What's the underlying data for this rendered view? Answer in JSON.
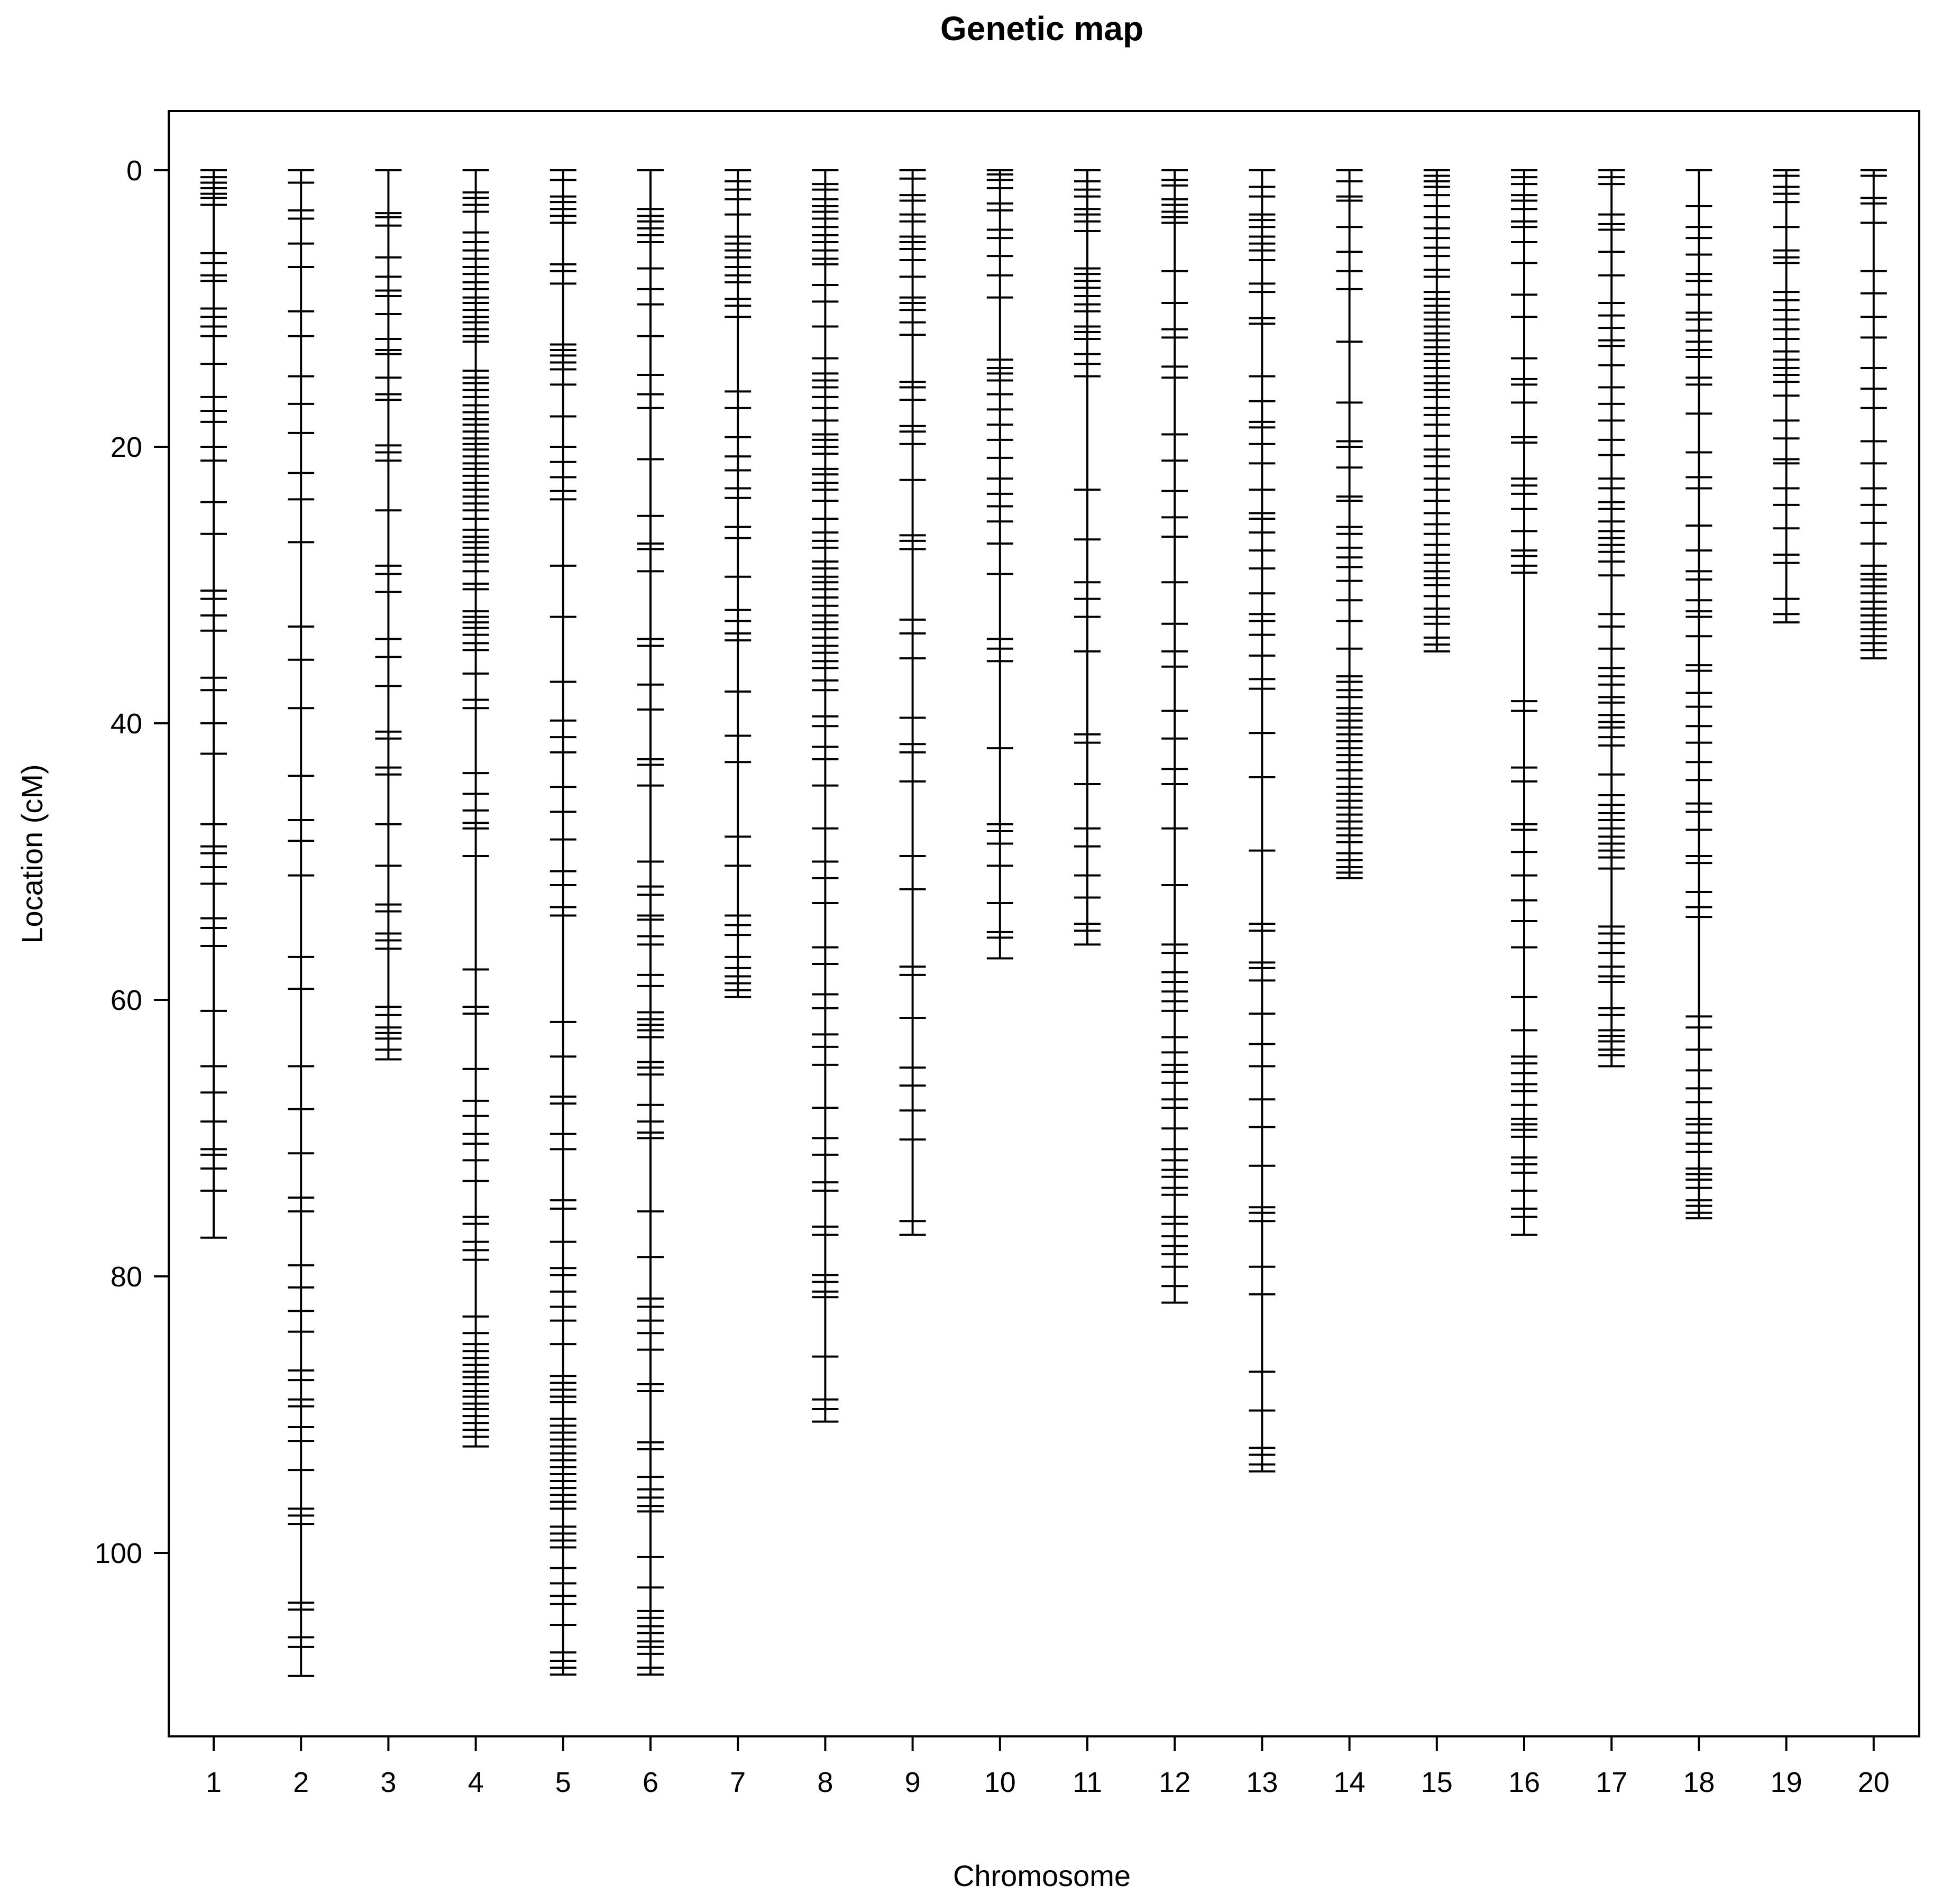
{
  "chart_data": {
    "type": "genetic-map",
    "title": "Genetic map",
    "xlabel": "Chromosome",
    "ylabel": "Location (cM)",
    "ylim": [
      0,
      109
    ],
    "yticks": [
      0,
      20,
      40,
      60,
      80,
      100
    ],
    "ytick_labels": [
      "0",
      "20",
      "40",
      "60",
      "80",
      "100"
    ],
    "chromosomes": [
      {
        "name": "1",
        "length": 77.2,
        "markers": [
          0,
          0.5,
          0.9,
          1.3,
          1.7,
          2.0,
          2.5,
          6.0,
          6.7,
          7.6,
          8.0,
          10.0,
          10.6,
          11.3,
          12.0,
          14.0,
          16.4,
          17.4,
          18.2,
          20.0,
          21.0,
          24.0,
          26.3,
          30.4,
          31.0,
          32.2,
          33.3,
          36.7,
          37.6,
          40.0,
          42.2,
          47.3,
          48.9,
          49.4,
          50.4,
          51.6,
          54.1,
          54.8,
          56.1,
          60.8,
          64.8,
          66.7,
          68.8,
          70.8,
          71.2,
          72.2,
          73.8,
          77.2
        ]
      },
      {
        "name": "2",
        "length": 108.9,
        "markers": [
          0,
          0.9,
          2.9,
          3.5,
          5.3,
          7.0,
          10.2,
          12.0,
          14.9,
          16.9,
          19.0,
          21.9,
          23.8,
          26.9,
          33.0,
          35.4,
          38.9,
          43.8,
          47.0,
          48.5,
          51.0,
          56.9,
          59.2,
          64.8,
          67.9,
          71.1,
          74.3,
          75.3,
          79.2,
          80.8,
          82.5,
          84.0,
          86.8,
          87.5,
          88.9,
          89.4,
          90.9,
          91.9,
          94.0,
          96.8,
          97.3,
          97.9,
          103.6,
          104.1,
          106.1,
          106.8,
          108.9
        ]
      },
      {
        "name": "3",
        "length": 64.3,
        "markers": [
          0,
          3.1,
          3.4,
          4.0,
          6.3,
          7.7,
          8.7,
          9.1,
          10.4,
          12.2,
          13.0,
          13.3,
          15.0,
          16.2,
          16.6,
          19.9,
          20.4,
          21.0,
          24.6,
          28.6,
          29.2,
          30.5,
          33.9,
          35.2,
          37.3,
          40.6,
          41.1,
          43.2,
          43.7,
          47.3,
          50.3,
          53.1,
          53.6,
          55.2,
          55.7,
          56.3,
          60.5,
          61.1,
          62.0,
          62.4,
          62.8,
          63.6,
          64.3
        ]
      },
      {
        "name": "4",
        "length": 92.3,
        "markers": [
          0,
          1.6,
          2.0,
          2.5,
          3.0,
          4.5,
          5.2,
          5.8,
          6.4,
          7.0,
          7.5,
          8.1,
          8.6,
          9.2,
          9.6,
          10.1,
          10.6,
          11.0,
          11.5,
          12.0,
          12.4,
          14.5,
          15.0,
          15.4,
          15.9,
          16.4,
          17.0,
          17.5,
          18.0,
          18.4,
          18.9,
          19.4,
          19.8,
          20.2,
          20.7,
          21.2,
          21.6,
          22.1,
          22.6,
          23.1,
          23.6,
          24.1,
          24.6,
          25.2,
          26.0,
          26.5,
          26.9,
          27.3,
          27.8,
          28.3,
          29.0,
          29.9,
          30.3,
          31.9,
          32.3,
          32.7,
          33.1,
          33.6,
          34.2,
          34.7,
          36.4,
          38.3,
          38.9,
          43.6,
          45.1,
          46.3,
          47.2,
          47.6,
          49.6,
          57.8,
          60.5,
          61.0,
          65.0,
          67.3,
          68.4,
          69.7,
          70.4,
          71.6,
          73.1,
          75.7,
          76.2,
          77.5,
          78.1,
          78.8,
          82.9,
          84.1,
          84.9,
          85.4,
          85.9,
          86.4,
          86.9,
          87.3,
          87.8,
          88.3,
          88.7,
          89.2,
          89.6,
          90.1,
          90.6,
          91.1,
          91.6,
          92.3
        ]
      },
      {
        "name": "5",
        "length": 108.8,
        "markers": [
          0,
          0.7,
          1.9,
          2.3,
          2.8,
          3.3,
          3.8,
          6.8,
          7.3,
          8.2,
          12.6,
          13.0,
          13.4,
          13.9,
          14.4,
          15.5,
          17.8,
          20.0,
          21.1,
          22.2,
          23.2,
          23.8,
          28.6,
          32.3,
          37.0,
          39.8,
          41.0,
          42.1,
          44.6,
          46.4,
          48.4,
          50.7,
          51.7,
          53.3,
          53.9,
          61.6,
          64.1,
          67.0,
          67.5,
          69.7,
          70.8,
          74.5,
          75.1,
          77.5,
          79.4,
          79.9,
          81.1,
          82.2,
          83.2,
          84.9,
          87.2,
          87.7,
          88.2,
          88.7,
          89.1,
          90.3,
          90.8,
          91.3,
          91.8,
          92.3,
          92.8,
          93.3,
          93.8,
          94.3,
          94.8,
          95.3,
          95.8,
          96.3,
          96.8,
          98.1,
          98.6,
          99.1,
          99.6,
          101.1,
          102.2,
          103.1,
          103.7,
          105.2,
          107.2,
          107.8,
          108.3,
          108.8
        ]
      },
      {
        "name": "6",
        "length": 108.8,
        "markers": [
          0,
          2.8,
          3.3,
          3.7,
          4.2,
          4.7,
          5.2,
          7.1,
          8.6,
          9.7,
          12.0,
          14.8,
          16.2,
          17.2,
          20.9,
          25.0,
          27.0,
          27.4,
          29.0,
          33.9,
          34.4,
          37.2,
          39.0,
          42.6,
          43.0,
          44.5,
          50.0,
          51.8,
          52.4,
          53.9,
          54.2,
          55.4,
          56.0,
          58.2,
          59.0,
          60.9,
          61.4,
          61.8,
          62.2,
          62.7,
          64.5,
          64.9,
          65.4,
          67.6,
          68.8,
          69.6,
          70.0,
          75.3,
          78.6,
          81.6,
          82.2,
          83.2,
          84.1,
          85.3,
          87.8,
          88.3,
          92.0,
          92.5,
          94.5,
          95.4,
          96.0,
          96.6,
          97.0,
          100.3,
          102.5,
          104.2,
          104.7,
          105.3,
          105.8,
          106.4,
          106.8,
          107.3,
          108.3,
          108.8
        ]
      },
      {
        "name": "7",
        "length": 59.8,
        "markers": [
          0,
          0.8,
          1.4,
          2.1,
          3.2,
          4.8,
          5.3,
          5.8,
          6.3,
          7.0,
          7.6,
          8.1,
          9.3,
          9.8,
          10.6,
          16.0,
          17.2,
          19.3,
          20.7,
          21.7,
          23.0,
          23.7,
          25.8,
          26.6,
          29.4,
          31.8,
          32.6,
          33.5,
          34.0,
          37.7,
          40.9,
          42.8,
          48.2,
          50.3,
          53.9,
          54.6,
          55.3,
          56.9,
          57.7,
          58.3,
          58.8,
          59.3,
          59.8
        ]
      },
      {
        "name": "8",
        "length": 90.5,
        "markers": [
          0,
          1.0,
          1.4,
          2.1,
          2.6,
          3.0,
          3.5,
          4.1,
          4.7,
          5.2,
          5.8,
          6.4,
          6.8,
          8.3,
          9.5,
          11.3,
          13.6,
          14.7,
          15.2,
          15.7,
          16.4,
          17.2,
          18.1,
          19.1,
          19.5,
          20.0,
          20.5,
          21.6,
          22.0,
          22.6,
          23.1,
          23.9,
          25.2,
          26.2,
          26.8,
          27.3,
          28.3,
          28.8,
          29.4,
          29.8,
          30.3,
          30.9,
          31.5,
          32.2,
          32.7,
          33.2,
          33.8,
          34.4,
          34.9,
          35.5,
          36.0,
          36.9,
          37.6,
          39.5,
          40.2,
          41.7,
          42.6,
          44.5,
          47.6,
          50.0,
          51.2,
          53.0,
          56.2,
          57.4,
          59.6,
          60.6,
          62.5,
          63.4,
          64.7,
          67.8,
          70.0,
          71.2,
          73.2,
          73.8,
          76.4,
          77.0,
          79.9,
          80.4,
          81.1,
          81.5,
          85.8,
          88.9,
          89.6,
          90.5
        ]
      },
      {
        "name": "9",
        "length": 77.0,
        "markers": [
          0,
          0.6,
          1.8,
          2.2,
          3.2,
          3.7,
          4.8,
          5.2,
          5.7,
          6.5,
          7.7,
          9.2,
          9.6,
          10.1,
          11.0,
          11.9,
          15.3,
          15.7,
          16.6,
          18.5,
          18.9,
          19.8,
          22.4,
          26.4,
          26.8,
          27.4,
          32.5,
          33.5,
          35.3,
          39.6,
          41.5,
          42.1,
          44.2,
          49.6,
          52.0,
          57.6,
          58.2,
          61.3,
          64.9,
          66.2,
          68.0,
          70.1,
          76.0,
          77.0
        ]
      },
      {
        "name": "10",
        "length": 57.0,
        "markers": [
          0,
          0.3,
          0.7,
          1.3,
          2.4,
          2.9,
          4.3,
          4.9,
          6.2,
          7.6,
          9.2,
          13.7,
          14.3,
          14.7,
          15.2,
          16.2,
          17.3,
          18.4,
          19.5,
          20.8,
          22.3,
          23.4,
          24.3,
          25.4,
          27.0,
          29.2,
          33.9,
          34.6,
          35.5,
          41.8,
          47.3,
          47.8,
          48.7,
          50.3,
          53.0,
          55.1,
          55.5,
          57.0
        ]
      },
      {
        "name": "11",
        "length": 56.0,
        "markers": [
          0,
          0.8,
          1.4,
          1.9,
          2.8,
          3.2,
          3.7,
          4.4,
          7.1,
          7.5,
          8.0,
          8.5,
          9.1,
          9.7,
          10.2,
          11.3,
          11.7,
          12.2,
          13.3,
          14.0,
          14.9,
          23.1,
          26.7,
          29.8,
          31.0,
          32.3,
          34.8,
          40.8,
          41.4,
          44.4,
          47.6,
          48.9,
          51.0,
          52.6,
          54.5,
          55.0,
          56.0
        ]
      },
      {
        "name": "12",
        "length": 81.9,
        "markers": [
          0,
          0.7,
          1.1,
          2.1,
          2.5,
          3.0,
          3.4,
          3.8,
          7.3,
          9.6,
          11.5,
          12.1,
          14.2,
          15.0,
          19.1,
          21.0,
          23.2,
          25.1,
          26.5,
          29.8,
          32.8,
          34.8,
          35.9,
          39.1,
          41.1,
          43.3,
          44.4,
          47.6,
          51.7,
          56.0,
          56.6,
          58.0,
          58.7,
          59.4,
          60.1,
          60.8,
          62.7,
          63.8,
          64.7,
          65.2,
          66.0,
          67.2,
          67.8,
          69.3,
          70.8,
          71.6,
          72.3,
          72.8,
          73.6,
          74.1,
          75.7,
          76.2,
          77.1,
          77.8,
          78.4,
          79.3,
          80.7,
          81.9
        ]
      },
      {
        "name": "13",
        "length": 94.1,
        "markers": [
          0,
          1.2,
          1.9,
          3.2,
          3.6,
          4.1,
          4.8,
          5.3,
          5.8,
          6.5,
          8.2,
          8.8,
          10.7,
          11.1,
          14.9,
          16.7,
          18.2,
          18.6,
          19.8,
          21.2,
          23.1,
          24.8,
          25.2,
          26.2,
          27.5,
          28.8,
          30.6,
          32.1,
          32.6,
          33.6,
          35.1,
          36.8,
          37.5,
          40.7,
          43.9,
          49.2,
          54.5,
          55.0,
          57.3,
          57.7,
          58.6,
          61.0,
          63.2,
          64.8,
          67.2,
          69.2,
          72.0,
          75.0,
          75.4,
          76.0,
          79.3,
          81.3,
          86.9,
          89.7,
          92.4,
          92.9,
          93.6,
          94.1
        ]
      },
      {
        "name": "14",
        "length": 51.2,
        "markers": [
          0,
          0.8,
          1.9,
          2.2,
          4.1,
          5.9,
          7.3,
          8.6,
          12.4,
          16.8,
          19.6,
          20.0,
          21.5,
          23.6,
          23.9,
          25.8,
          26.3,
          27.3,
          28.0,
          28.7,
          29.7,
          31.1,
          32.6,
          34.6,
          36.6,
          37.0,
          37.6,
          38.1,
          38.9,
          39.3,
          39.8,
          40.3,
          40.8,
          41.3,
          41.8,
          42.3,
          42.8,
          43.4,
          44.0,
          44.6,
          45.1,
          45.6,
          46.1,
          46.6,
          47.1,
          47.6,
          48.1,
          48.6,
          49.4,
          49.9,
          50.4,
          50.8,
          51.2
        ]
      },
      {
        "name": "15",
        "length": 34.8,
        "markers": [
          0,
          0.4,
          0.8,
          1.2,
          1.8,
          2.6,
          3.4,
          4.2,
          4.9,
          5.6,
          6.2,
          7.2,
          7.7,
          8.8,
          9.3,
          9.8,
          10.3,
          10.8,
          11.3,
          11.8,
          12.3,
          12.8,
          13.3,
          13.8,
          14.3,
          14.9,
          15.4,
          15.9,
          16.4,
          17.2,
          17.7,
          18.4,
          19.2,
          20.2,
          20.7,
          21.4,
          22.3,
          23.1,
          23.9,
          24.8,
          25.6,
          26.3,
          27.1,
          27.8,
          28.4,
          29.0,
          29.5,
          30.0,
          30.8,
          31.7,
          32.3,
          32.8,
          33.8,
          34.3,
          34.8
        ]
      },
      {
        "name": "16",
        "length": 77.0,
        "markers": [
          0,
          0.5,
          1.0,
          1.8,
          2.2,
          2.8,
          3.7,
          4.1,
          5.2,
          6.7,
          9.0,
          10.6,
          13.6,
          15.1,
          15.5,
          16.8,
          19.3,
          19.7,
          22.3,
          22.8,
          23.4,
          24.5,
          26.1,
          27.5,
          27.9,
          28.6,
          29.1,
          38.4,
          39.1,
          43.2,
          44.2,
          47.3,
          47.7,
          49.3,
          51.0,
          52.8,
          54.3,
          56.2,
          59.8,
          62.2,
          64.1,
          64.6,
          65.3,
          66.1,
          66.6,
          67.6,
          68.6,
          69.0,
          69.4,
          69.9,
          71.4,
          71.9,
          72.5,
          73.8,
          75.1,
          75.7,
          77.0
        ]
      },
      {
        "name": "17",
        "length": 64.8,
        "markers": [
          0,
          0.5,
          1.0,
          3.2,
          3.9,
          4.3,
          5.9,
          7.6,
          9.6,
          10.5,
          11.4,
          12.3,
          12.7,
          14.1,
          15.7,
          16.9,
          18.1,
          19.5,
          20.6,
          22.3,
          23.0,
          24.0,
          24.5,
          25.4,
          26.1,
          26.6,
          27.1,
          27.6,
          28.3,
          29.3,
          32.1,
          33.0,
          34.6,
          36.0,
          36.6,
          37.2,
          38.1,
          38.5,
          39.4,
          39.9,
          40.3,
          41.0,
          41.6,
          43.7,
          45.2,
          45.9,
          46.5,
          47.0,
          47.6,
          48.2,
          48.7,
          49.2,
          49.7,
          50.5,
          54.7,
          55.2,
          55.9,
          56.6,
          57.6,
          58.3,
          58.7,
          60.6,
          61.1,
          62.2,
          62.6,
          63.0,
          63.6,
          64.0,
          64.8
        ]
      },
      {
        "name": "18",
        "length": 75.8,
        "markers": [
          0,
          2.6,
          4.1,
          4.9,
          6.1,
          7.5,
          8.0,
          9.0,
          10.3,
          10.8,
          11.6,
          12.4,
          13.0,
          13.5,
          15.0,
          15.5,
          17.6,
          20.4,
          22.2,
          23.0,
          25.7,
          27.5,
          29.0,
          29.6,
          31.1,
          31.9,
          32.3,
          33.7,
          35.8,
          36.2,
          37.8,
          38.8,
          40.2,
          41.4,
          42.8,
          44.1,
          45.8,
          46.4,
          47.7,
          49.6,
          50.1,
          52.2,
          53.3,
          54.0,
          61.2,
          62.0,
          63.6,
          65.1,
          66.4,
          67.4,
          68.6,
          69.0,
          69.6,
          70.4,
          71.0,
          72.2,
          72.6,
          73.0,
          73.6,
          74.5,
          74.9,
          75.4,
          75.8
        ]
      },
      {
        "name": "19",
        "length": 32.7,
        "markers": [
          0,
          0.4,
          1.2,
          1.7,
          2.3,
          4.1,
          5.8,
          6.3,
          6.7,
          8.8,
          9.4,
          10.1,
          10.8,
          11.5,
          12.2,
          13.1,
          13.7,
          14.3,
          14.8,
          15.3,
          16.3,
          18.1,
          19.4,
          20.9,
          21.2,
          23.0,
          24.2,
          25.9,
          27.8,
          28.4,
          31.0,
          32.1,
          32.7
        ]
      },
      {
        "name": "20",
        "length": 35.3,
        "markers": [
          0,
          0.4,
          2.0,
          2.4,
          3.8,
          7.3,
          8.9,
          10.6,
          12.1,
          14.3,
          15.8,
          17.2,
          19.6,
          21.2,
          23.0,
          24.2,
          25.5,
          27.0,
          28.6,
          29.2,
          29.6,
          30.1,
          30.6,
          31.2,
          31.7,
          32.2,
          32.7,
          33.2,
          33.7,
          34.2,
          34.7,
          35.3
        ]
      }
    ]
  }
}
